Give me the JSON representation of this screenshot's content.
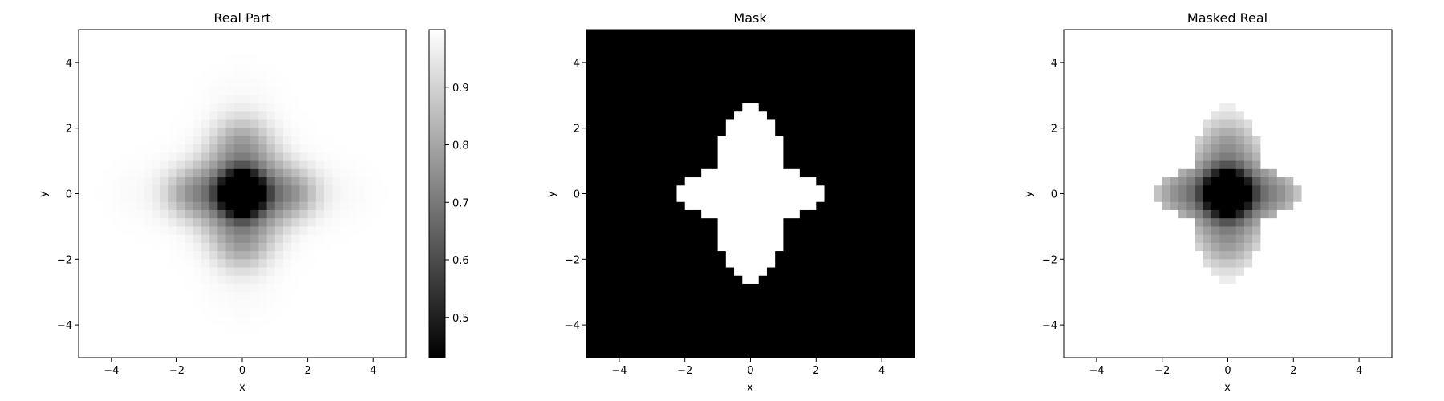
{
  "chart_data": [
    {
      "type": "heatmap",
      "title": "Real Part",
      "xlabel": "x",
      "ylabel": "y",
      "xlim": [
        -5,
        5
      ],
      "ylim": [
        -5,
        5
      ],
      "xticks": [
        "−4",
        "−2",
        "0",
        "2",
        "4"
      ],
      "yticks": [
        "−4",
        "−2",
        "0",
        "2",
        "4"
      ],
      "colormap": "gray",
      "colorbar": {
        "range": [
          0.43,
          1.0
        ],
        "ticks": [
          0.5,
          0.6,
          0.7,
          0.8,
          0.9
        ],
        "tick_labels": [
          "0.5",
          "0.6",
          "0.7",
          "0.8",
          "0.9"
        ]
      }
    },
    {
      "type": "heatmap",
      "title": "Mask",
      "xlabel": "x",
      "ylabel": "y",
      "xlim": [
        -5,
        5
      ],
      "ylim": [
        -5,
        5
      ],
      "xticks": [
        "−4",
        "−2",
        "0",
        "2",
        "4"
      ],
      "yticks": [
        "−4",
        "−2",
        "0",
        "2",
        "4"
      ],
      "colormap": "gray",
      "values": "binary mask: 1 inside cross-shaped region around origin, 0 elsewhere"
    },
    {
      "type": "heatmap",
      "title": "Masked Real",
      "xlabel": "x",
      "ylabel": "y",
      "xlim": [
        -5,
        5
      ],
      "ylim": [
        -5,
        5
      ],
      "xticks": [
        "−4",
        "−2",
        "0",
        "2",
        "4"
      ],
      "yticks": [
        "−4",
        "−2",
        "0",
        "2",
        "4"
      ],
      "colormap": "gray"
    }
  ]
}
